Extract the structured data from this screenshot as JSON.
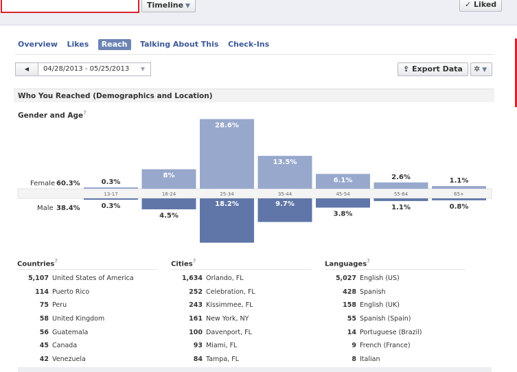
{
  "header": {
    "timeline_label": "Timeline",
    "liked_label": "Liked"
  },
  "tabs": [
    "Overview",
    "Likes",
    "Reach",
    "Talking About This",
    "Check-Ins"
  ],
  "active_tab": "Reach",
  "date_range": "04/28/2013 - 05/25/2013",
  "export_label": "Export Data",
  "section_title": "Who You Reached (Demographics and Location)",
  "gender_age": {
    "title": "Gender and Age",
    "female_label": "Female",
    "female_pct": "60.3%",
    "male_label": "Male",
    "male_pct": "38.4%"
  },
  "chart_data": {
    "type": "bar",
    "categories": [
      "13-17",
      "18-24",
      "25-34",
      "35-44",
      "45-54",
      "55-64",
      "65+"
    ],
    "series": [
      {
        "name": "Female",
        "values": [
          0.3,
          8,
          28.6,
          13.5,
          6.1,
          2.6,
          1.1
        ],
        "labels": [
          "0.3%",
          "8%",
          "28.6%",
          "13.5%",
          "6.1%",
          "2.6%",
          "1.1%"
        ],
        "color": "#98a8cc"
      },
      {
        "name": "Male",
        "values": [
          0.3,
          4.5,
          18.2,
          9.7,
          3.8,
          1.1,
          0.8
        ],
        "labels": [
          "0.3%",
          "4.5%",
          "18.2%",
          "9.7%",
          "3.8%",
          "1.1%",
          "0.8%"
        ],
        "color": "#6076a9"
      }
    ]
  },
  "countries": {
    "title": "Countries",
    "rows": [
      [
        "5,107",
        "United States of America"
      ],
      [
        "114",
        "Puerto Rico"
      ],
      [
        "75",
        "Peru"
      ],
      [
        "58",
        "United Kingdom"
      ],
      [
        "56",
        "Guatemala"
      ],
      [
        "45",
        "Canada"
      ],
      [
        "42",
        "Venezuela"
      ]
    ]
  },
  "cities": {
    "title": "Cities",
    "rows": [
      [
        "1,634",
        "Orlando, FL"
      ],
      [
        "252",
        "Celebration, FL"
      ],
      [
        "243",
        "Kissimmee, FL"
      ],
      [
        "161",
        "New York, NY"
      ],
      [
        "100",
        "Davenport, FL"
      ],
      [
        "93",
        "Miami, FL"
      ],
      [
        "84",
        "Tampa, FL"
      ]
    ]
  },
  "languages": {
    "title": "Languages",
    "rows": [
      [
        "5,027",
        "English (US)"
      ],
      [
        "428",
        "Spanish"
      ],
      [
        "158",
        "English (UK)"
      ],
      [
        "55",
        "Spanish (Spain)"
      ],
      [
        "14",
        "Portuguese (Brazil)"
      ],
      [
        "9",
        "French (France)"
      ],
      [
        "8",
        "Italian"
      ]
    ]
  },
  "colors": {
    "accent": "#3b5998",
    "active_tab": "#6d84b4",
    "highlight": "#d8232a"
  }
}
